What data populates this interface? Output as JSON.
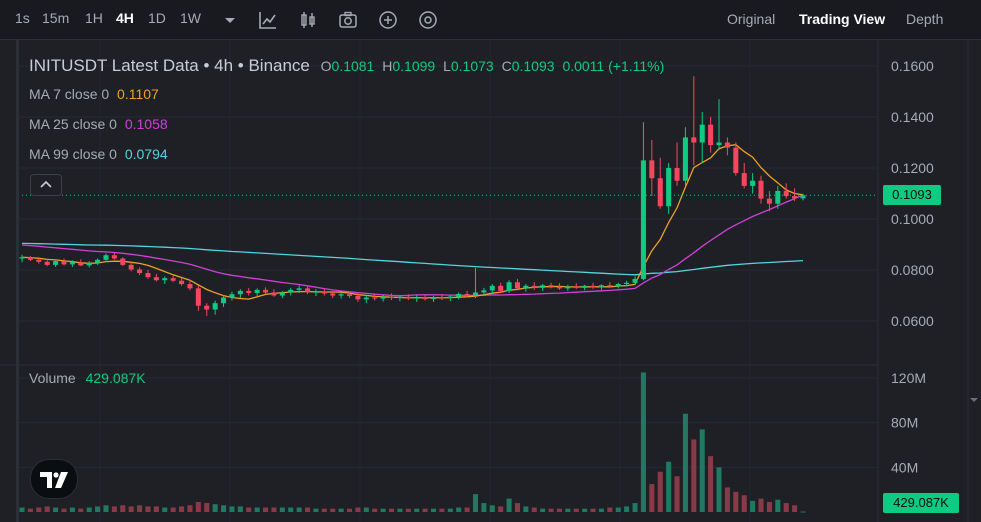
{
  "toolbar": {
    "intervals": [
      "1s",
      "15m",
      "1H",
      "4H",
      "1D",
      "1W"
    ],
    "active_interval": "4H",
    "icons": [
      "chevron-down-icon",
      "line-tool-icon",
      "candle-type-icon",
      "screenshot-icon",
      "add-indicator-icon",
      "settings-icon"
    ],
    "views": [
      "Original",
      "Trading View",
      "Depth"
    ],
    "active_view": "Trading View"
  },
  "legend": {
    "title": "INITUSDT Latest Data • 4h • Binance",
    "ohlc": {
      "o_label": "O",
      "o": "0.1081",
      "h_label": "H",
      "h": "0.1099",
      "l_label": "L",
      "l": "0.1073",
      "c_label": "C",
      "c": "0.1093",
      "change": "0.0011 (+1.11%)"
    },
    "ma7": {
      "label": "MA 7 close 0",
      "value": "0.1107",
      "color": "#f0a020"
    },
    "ma25": {
      "label": "MA 25 close 0",
      "value": "0.1058",
      "color": "#d040d8"
    },
    "ma99": {
      "label": "MA 99 close 0",
      "value": "0.0794",
      "color": "#52d6de"
    },
    "volume": {
      "label": "Volume",
      "value": "429.087K"
    }
  },
  "price_axis": {
    "ticks": [
      "0.1600",
      "0.1400",
      "0.1200",
      "0.1000",
      "0.0800",
      "0.0600"
    ],
    "last_price": "0.1093"
  },
  "volume_axis": {
    "ticks": [
      "120M",
      "80M",
      "40M"
    ],
    "last_volume": "429.087K"
  },
  "colors": {
    "up": "#0ecb81",
    "down": "#f6465d",
    "up_vol": "#1f7a62",
    "down_vol": "#8a3a46",
    "background": "#1e2026"
  },
  "chart_data": {
    "type": "candlestick",
    "symbol": "INITUSDT",
    "interval": "4h",
    "ylim": [
      0.055,
      0.165
    ],
    "volume_ylim": [
      0,
      130
    ],
    "volume_unit": "M",
    "candles": [
      [
        0.0845,
        0.086,
        0.083,
        0.085,
        4
      ],
      [
        0.085,
        0.0855,
        0.0835,
        0.084,
        3
      ],
      [
        0.084,
        0.085,
        0.0825,
        0.0832,
        4
      ],
      [
        0.0832,
        0.0845,
        0.0815,
        0.082,
        5
      ],
      [
        0.082,
        0.084,
        0.0812,
        0.0835,
        4
      ],
      [
        0.0835,
        0.0845,
        0.0818,
        0.0822,
        3
      ],
      [
        0.0822,
        0.0838,
        0.0812,
        0.083,
        4
      ],
      [
        0.083,
        0.0842,
        0.0815,
        0.0818,
        3
      ],
      [
        0.0818,
        0.0835,
        0.081,
        0.0828,
        4
      ],
      [
        0.0828,
        0.0845,
        0.082,
        0.084,
        5
      ],
      [
        0.084,
        0.0865,
        0.083,
        0.0858,
        6
      ],
      [
        0.0858,
        0.0868,
        0.084,
        0.0845,
        5
      ],
      [
        0.0845,
        0.085,
        0.0815,
        0.082,
        6
      ],
      [
        0.082,
        0.083,
        0.0795,
        0.0802,
        5
      ],
      [
        0.0802,
        0.081,
        0.078,
        0.0788,
        6
      ],
      [
        0.0788,
        0.08,
        0.0765,
        0.0772,
        5
      ],
      [
        0.0772,
        0.0785,
        0.0755,
        0.076,
        5
      ],
      [
        0.076,
        0.0775,
        0.0745,
        0.0768,
        4
      ],
      [
        0.0768,
        0.0778,
        0.0752,
        0.0758,
        4
      ],
      [
        0.0758,
        0.0768,
        0.0738,
        0.0745,
        5
      ],
      [
        0.0745,
        0.076,
        0.072,
        0.0728,
        6
      ],
      [
        0.0728,
        0.074,
        0.064,
        0.066,
        9
      ],
      [
        0.066,
        0.067,
        0.062,
        0.0645,
        8
      ],
      [
        0.0645,
        0.068,
        0.0625,
        0.067,
        7
      ],
      [
        0.067,
        0.07,
        0.0655,
        0.0692,
        6
      ],
      [
        0.0692,
        0.0715,
        0.068,
        0.0705,
        5
      ],
      [
        0.0705,
        0.0725,
        0.069,
        0.0718,
        5
      ],
      [
        0.0718,
        0.073,
        0.07,
        0.071,
        4
      ],
      [
        0.071,
        0.0728,
        0.0698,
        0.0722,
        4
      ],
      [
        0.0722,
        0.0732,
        0.0705,
        0.0712,
        4
      ],
      [
        0.0712,
        0.0725,
        0.0695,
        0.07,
        4
      ],
      [
        0.07,
        0.0718,
        0.069,
        0.0712,
        4
      ],
      [
        0.0712,
        0.073,
        0.07,
        0.0722,
        4
      ],
      [
        0.0722,
        0.074,
        0.071,
        0.0728,
        4
      ],
      [
        0.0728,
        0.0735,
        0.0705,
        0.0712,
        4
      ],
      [
        0.0712,
        0.0725,
        0.0698,
        0.0715,
        3
      ],
      [
        0.0715,
        0.0728,
        0.07,
        0.0708,
        3
      ],
      [
        0.0708,
        0.0718,
        0.069,
        0.07,
        3
      ],
      [
        0.07,
        0.0712,
        0.0688,
        0.0705,
        3
      ],
      [
        0.0705,
        0.0715,
        0.069,
        0.0698,
        3
      ],
      [
        0.0698,
        0.0708,
        0.0675,
        0.0685,
        4
      ],
      [
        0.0685,
        0.07,
        0.067,
        0.0692,
        4
      ],
      [
        0.0692,
        0.0705,
        0.068,
        0.0688,
        3
      ],
      [
        0.0688,
        0.0702,
        0.0676,
        0.0696,
        3
      ],
      [
        0.0696,
        0.0708,
        0.0682,
        0.069,
        3
      ],
      [
        0.069,
        0.07,
        0.0678,
        0.0695,
        3
      ],
      [
        0.0695,
        0.0705,
        0.0682,
        0.0688,
        3
      ],
      [
        0.0688,
        0.07,
        0.0675,
        0.0692,
        3
      ],
      [
        0.0692,
        0.0702,
        0.068,
        0.0686,
        3
      ],
      [
        0.0686,
        0.0698,
        0.0675,
        0.0694,
        3
      ],
      [
        0.0694,
        0.0705,
        0.0682,
        0.069,
        3
      ],
      [
        0.069,
        0.07,
        0.0678,
        0.0696,
        3
      ],
      [
        0.0696,
        0.0712,
        0.0685,
        0.0706,
        4
      ],
      [
        0.0706,
        0.0718,
        0.0692,
        0.07,
        4
      ],
      [
        0.07,
        0.0808,
        0.069,
        0.0712,
        16
      ],
      [
        0.0712,
        0.073,
        0.0698,
        0.072,
        8
      ],
      [
        0.072,
        0.0745,
        0.0705,
        0.0738,
        6
      ],
      [
        0.0738,
        0.075,
        0.0712,
        0.0718,
        5
      ],
      [
        0.0718,
        0.076,
        0.071,
        0.0752,
        12
      ],
      [
        0.0752,
        0.0765,
        0.072,
        0.0728,
        8
      ],
      [
        0.0728,
        0.0745,
        0.0715,
        0.0738,
        5
      ],
      [
        0.0738,
        0.0752,
        0.0722,
        0.073,
        4
      ],
      [
        0.073,
        0.0745,
        0.0718,
        0.074,
        3
      ],
      [
        0.074,
        0.075,
        0.0728,
        0.0735,
        3
      ],
      [
        0.0735,
        0.0748,
        0.0722,
        0.0728,
        3
      ],
      [
        0.0728,
        0.0742,
        0.0718,
        0.0736,
        3
      ],
      [
        0.0736,
        0.0748,
        0.0725,
        0.073,
        3
      ],
      [
        0.073,
        0.0742,
        0.072,
        0.0738,
        3
      ],
      [
        0.0738,
        0.075,
        0.0726,
        0.0732,
        3
      ],
      [
        0.0732,
        0.0744,
        0.0722,
        0.074,
        3
      ],
      [
        0.074,
        0.0752,
        0.073,
        0.0736,
        4
      ],
      [
        0.0736,
        0.075,
        0.0728,
        0.0745,
        4
      ],
      [
        0.0745,
        0.0758,
        0.0735,
        0.075,
        5
      ],
      [
        0.075,
        0.0775,
        0.0742,
        0.0765,
        8
      ],
      [
        0.0765,
        0.138,
        0.076,
        0.123,
        125
      ],
      [
        0.123,
        0.131,
        0.109,
        0.116,
        25
      ],
      [
        0.116,
        0.124,
        0.104,
        0.105,
        36
      ],
      [
        0.105,
        0.122,
        0.102,
        0.12,
        45
      ],
      [
        0.12,
        0.13,
        0.113,
        0.115,
        32
      ],
      [
        0.115,
        0.136,
        0.113,
        0.132,
        88
      ],
      [
        0.132,
        0.156,
        0.121,
        0.13,
        65
      ],
      [
        0.13,
        0.142,
        0.122,
        0.137,
        74
      ],
      [
        0.137,
        0.14,
        0.126,
        0.129,
        50
      ],
      [
        0.129,
        0.147,
        0.127,
        0.13,
        40
      ],
      [
        0.13,
        0.132,
        0.125,
        0.128,
        22
      ],
      [
        0.128,
        0.13,
        0.117,
        0.118,
        18
      ],
      [
        0.118,
        0.122,
        0.112,
        0.113,
        15
      ],
      [
        0.113,
        0.118,
        0.11,
        0.115,
        10
      ],
      [
        0.115,
        0.117,
        0.106,
        0.108,
        12
      ],
      [
        0.108,
        0.111,
        0.103,
        0.106,
        9
      ],
      [
        0.106,
        0.113,
        0.104,
        0.111,
        11
      ],
      [
        0.111,
        0.114,
        0.108,
        0.109,
        8
      ],
      [
        0.109,
        0.112,
        0.107,
        0.1081,
        6
      ],
      [
        0.1081,
        0.1099,
        0.1073,
        0.1093,
        0.43
      ]
    ]
  }
}
